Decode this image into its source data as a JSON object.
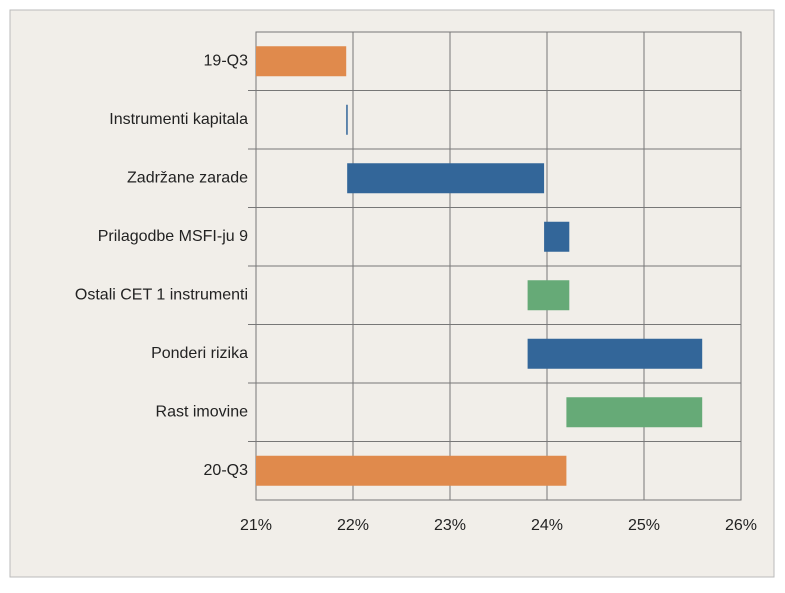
{
  "chart_data": {
    "type": "waterfall",
    "categories": [
      "19-Q3",
      "Instrumenti kapitala",
      "Zadržane zarade",
      "Prilagodbe MSFI-ju 9",
      "Ostali CET 1 instrumenti",
      "Ponderi rizika",
      "Rast imovine",
      "20-Q3"
    ],
    "values": [
      21.93,
      0.01,
      2.03,
      0.26,
      -0.43,
      1.8,
      -1.4,
      24.2
    ],
    "measure": [
      "absolute",
      "relative",
      "relative",
      "relative",
      "relative",
      "relative",
      "relative",
      "absolute"
    ],
    "total_color": "#e08a4c",
    "increase_color": "#336699",
    "decrease_color": "#66aa77",
    "xlim": [
      21,
      26
    ],
    "xticks": [
      {
        "value": 21,
        "label": "21%"
      },
      {
        "value": 22,
        "label": "22%"
      },
      {
        "value": 23,
        "label": "23%"
      },
      {
        "value": 24,
        "label": "24%"
      },
      {
        "value": 25,
        "label": "25%"
      },
      {
        "value": 26,
        "label": "26%"
      }
    ],
    "grid": true
  }
}
